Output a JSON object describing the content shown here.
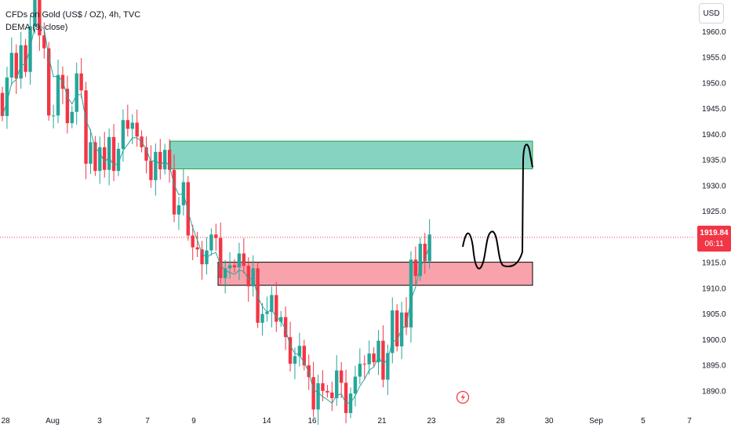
{
  "legend": {
    "symbol_line": "CFDs on Gold (US$ / OZ), 4h, TVC",
    "indicator_line": "DEMA (9, close)"
  },
  "currency": "USD",
  "last_price": {
    "value": "1919.84",
    "countdown": "06:11",
    "color": "#f23645"
  },
  "colors": {
    "up": "#26a69a",
    "down": "#f23645",
    "dema": "#26a69a",
    "supply_zone": "#5fc4ad",
    "demand_zone": "#f7939c",
    "zone_border": "#1ea64a"
  },
  "icons": {
    "alert": "lightning-icon"
  },
  "chart_data": {
    "type": "candlestick",
    "title": "CFDs on Gold (US$ / OZ), 4h, TVC",
    "series_indicator": "DEMA (9, close)",
    "y_ticks": [
      1890,
      1895,
      1900,
      1905,
      1910,
      1915,
      1920,
      1925,
      1930,
      1935,
      1940,
      1945,
      1950,
      1955,
      1960
    ],
    "x_ticks": [
      "28",
      "Aug",
      "3",
      "7",
      "9",
      "14",
      "16",
      "21",
      "23",
      "28",
      "30",
      "Sep",
      "5",
      "7"
    ],
    "ylim": [
      1885.5,
      1964
    ],
    "grid": false,
    "zones": [
      {
        "name": "supply",
        "y_low": 1933.2,
        "y_high": 1938.6
      },
      {
        "name": "demand",
        "y_low": 1910.5,
        "y_high": 1915
      }
    ],
    "last_price": 1919.84,
    "closes": [
      1943.5,
      1951.0,
      1955.8,
      1950.8,
      1957.3,
      1952.1,
      1961.0,
      1966.5,
      1959.2,
      1956.7,
      1943.6,
      1943.6,
      1951.5,
      1948.8,
      1942.1,
      1944.3,
      1951.8,
      1948.5,
      1934.2,
      1938.4,
      1932.8,
      1937.4,
      1933.0,
      1939.4,
      1932.8,
      1937.1,
      1942.7,
      1941.0,
      1942.2,
      1939.5,
      1937.4,
      1934.8,
      1931.0,
      1936.5,
      1933.1,
      1936.9,
      1933.0,
      1924.3,
      1926.1,
      1930.6,
      1920.2,
      1917.9,
      1917.5,
      1914.6,
      1917.3,
      1920.4,
      1919.7,
      1911.9,
      1913.8,
      1914.4,
      1914.0,
      1916.7,
      1914.3,
      1910.3,
      1913.8,
      1903.2,
      1904.9,
      1905.3,
      1908.6,
      1903.4,
      1904.3,
      1900.4,
      1895.2,
      1896.7,
      1898.7,
      1894.9,
      1892.6,
      1886.3,
      1891.4,
      1889.9,
      1889.6,
      1888.5,
      1893.9,
      1891.5,
      1885.6,
      1889.4,
      1892.7,
      1895.2,
      1895.1,
      1897.2,
      1895.5,
      1899.7,
      1892.1,
      1897.3,
      1905.6,
      1898.6,
      1905.2,
      1902.3,
      1915.5,
      1912.3,
      1918.6,
      1915.2,
      1920.4
    ],
    "projection": {
      "label": "hand-drawn projected path",
      "points": [
        [
          1918.0
        ],
        [
          1921.0
        ],
        [
          1916.0
        ],
        [
          1914.5
        ],
        [
          1920.5
        ],
        [
          1915.0
        ],
        [
          1914.5
        ],
        [
          1920.5
        ],
        [
          1938.0
        ],
        [
          1934.0
        ]
      ]
    }
  }
}
